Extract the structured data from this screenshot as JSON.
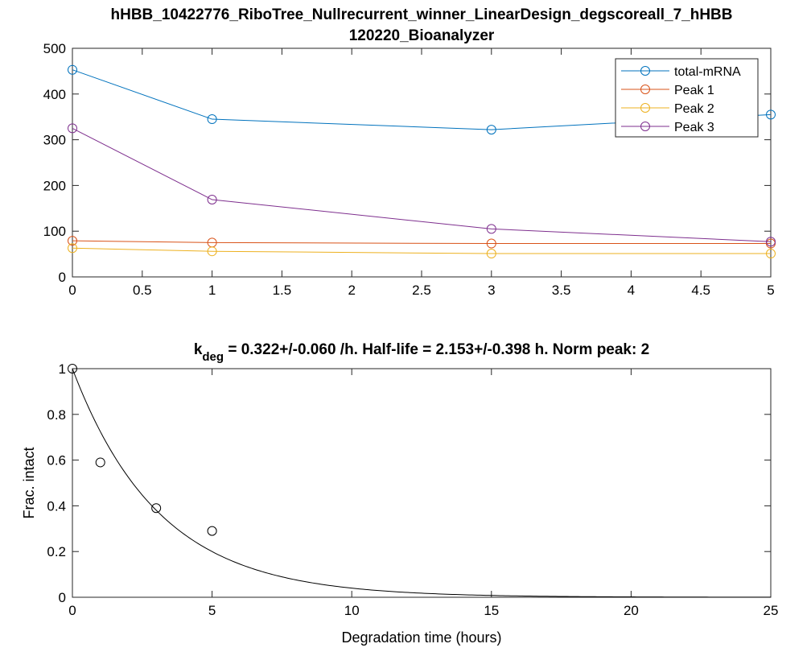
{
  "chart_data": [
    {
      "type": "line",
      "title": "hHBB_10422776_RiboTree_Nullrecurrent_winner_LinearDesign_degscoreall_7_hHBB",
      "subtitle": "120220_Bioanalyzer",
      "xlabel": "",
      "ylabel": "",
      "xlim": [
        0,
        5
      ],
      "ylim": [
        0,
        500
      ],
      "xticks": [
        "0",
        "0.5",
        "1",
        "1.5",
        "2",
        "2.5",
        "3",
        "3.5",
        "4",
        "4.5",
        "5"
      ],
      "yticks": [
        "0",
        "100",
        "200",
        "300",
        "400",
        "500"
      ],
      "grid": false,
      "legend_position": "top-right",
      "x": [
        0,
        1,
        3,
        5
      ],
      "series": [
        {
          "name": "total-mRNA",
          "color": "#0072BD",
          "values": [
            453,
            345,
            322,
            355
          ]
        },
        {
          "name": "Peak 1",
          "color": "#D95319",
          "values": [
            79,
            75,
            73,
            73
          ]
        },
        {
          "name": "Peak 2",
          "color": "#EDB120",
          "values": [
            63,
            56,
            51,
            51
          ]
        },
        {
          "name": "Peak 3",
          "color": "#7E2F8E",
          "values": [
            325,
            169,
            105,
            77
          ]
        }
      ]
    },
    {
      "type": "scatter",
      "title_k": "k",
      "title_sub": "deg",
      "title_rest": " = 0.322+/-0.060 /h. Half-life = 2.153+/-0.398 h. Norm peak: 2",
      "xlabel": "Degradation time (hours)",
      "ylabel": "Frac. intact",
      "xlim": [
        0,
        25
      ],
      "ylim": [
        0,
        1
      ],
      "xticks": [
        "0",
        "5",
        "10",
        "15",
        "20",
        "25"
      ],
      "yticks": [
        "0",
        "0.2",
        "0.4",
        "0.6",
        "0.8",
        "1"
      ],
      "grid": false,
      "points": {
        "x": [
          0,
          1,
          3,
          5
        ],
        "y": [
          1.0,
          0.59,
          0.39,
          0.29
        ],
        "color": "#000000"
      },
      "fit": {
        "type": "exponential decay",
        "k": 0.322,
        "color": "#000000"
      }
    }
  ]
}
